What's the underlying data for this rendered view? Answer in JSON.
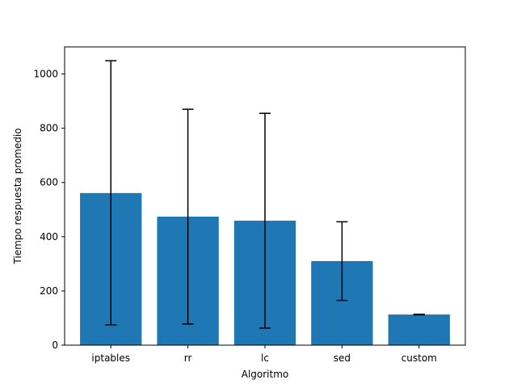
{
  "chart_data": {
    "type": "bar",
    "title": "",
    "xlabel": "Algoritmo",
    "ylabel": "Tiempo respuesta promedio",
    "categories": [
      "iptables",
      "rr",
      "lc",
      "sed",
      "custom"
    ],
    "values": [
      561,
      474,
      459,
      310,
      113
    ],
    "error_low": [
      75,
      78,
      63,
      165,
      112
    ],
    "error_high": [
      1049,
      870,
      855,
      455,
      114
    ],
    "ylim": [
      0,
      1100
    ],
    "yticks": [
      0,
      200,
      400,
      600,
      800,
      1000
    ],
    "ytick_labels": [
      "0",
      "200",
      "400",
      "600",
      "800",
      "1000"
    ],
    "bar_color": "#1f77b4",
    "error_color": "#000000",
    "grid": false,
    "legend": "none"
  }
}
